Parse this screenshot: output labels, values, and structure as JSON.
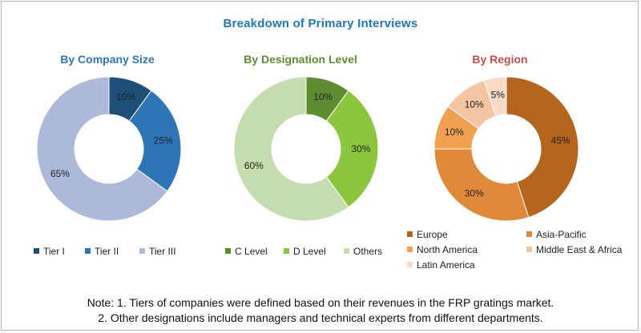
{
  "chart_data": {
    "type": "pie",
    "title": "Breakdown of Primary Interviews",
    "charts": [
      {
        "title": "By Company Size",
        "slices": [
          {
            "label": "Tier I",
            "value": 10,
            "display": "10%",
            "color": "#1f4e79"
          },
          {
            "label": "Tier II",
            "value": 25,
            "display": "25%",
            "color": "#2e75b6"
          },
          {
            "label": "Tier III",
            "value": 65,
            "display": "65%",
            "color": "#adb9da"
          }
        ]
      },
      {
        "title": "By Designation Level",
        "slices": [
          {
            "label": "C Level",
            "value": 10,
            "display": "10%",
            "color": "#5e8c31"
          },
          {
            "label": "D Level",
            "value": 30,
            "display": "30%",
            "color": "#8cc63f"
          },
          {
            "label": "Others",
            "value": 60,
            "display": "60%",
            "color": "#c5ddae"
          }
        ]
      },
      {
        "title": "By Region",
        "slices": [
          {
            "label": "Europe",
            "value": 45,
            "display": "45%",
            "color": "#b5651d"
          },
          {
            "label": "Asia-Pacific",
            "value": 30,
            "display": "30%",
            "color": "#e0893a"
          },
          {
            "label": "North America",
            "value": 10,
            "display": "10%",
            "color": "#f0a050"
          },
          {
            "label": "Middle East & Africa",
            "value": 10,
            "display": "10%",
            "color": "#f5c5a3"
          },
          {
            "label": "Latin America",
            "value": 5,
            "display": "5%",
            "color": "#fad9c5"
          }
        ]
      }
    ]
  },
  "notes": {
    "line1": "Note: 1. Tiers of companies were defined based on their revenues in the FRP gratings market.",
    "line2": "2. Other designations include managers and technical experts from different departments."
  }
}
